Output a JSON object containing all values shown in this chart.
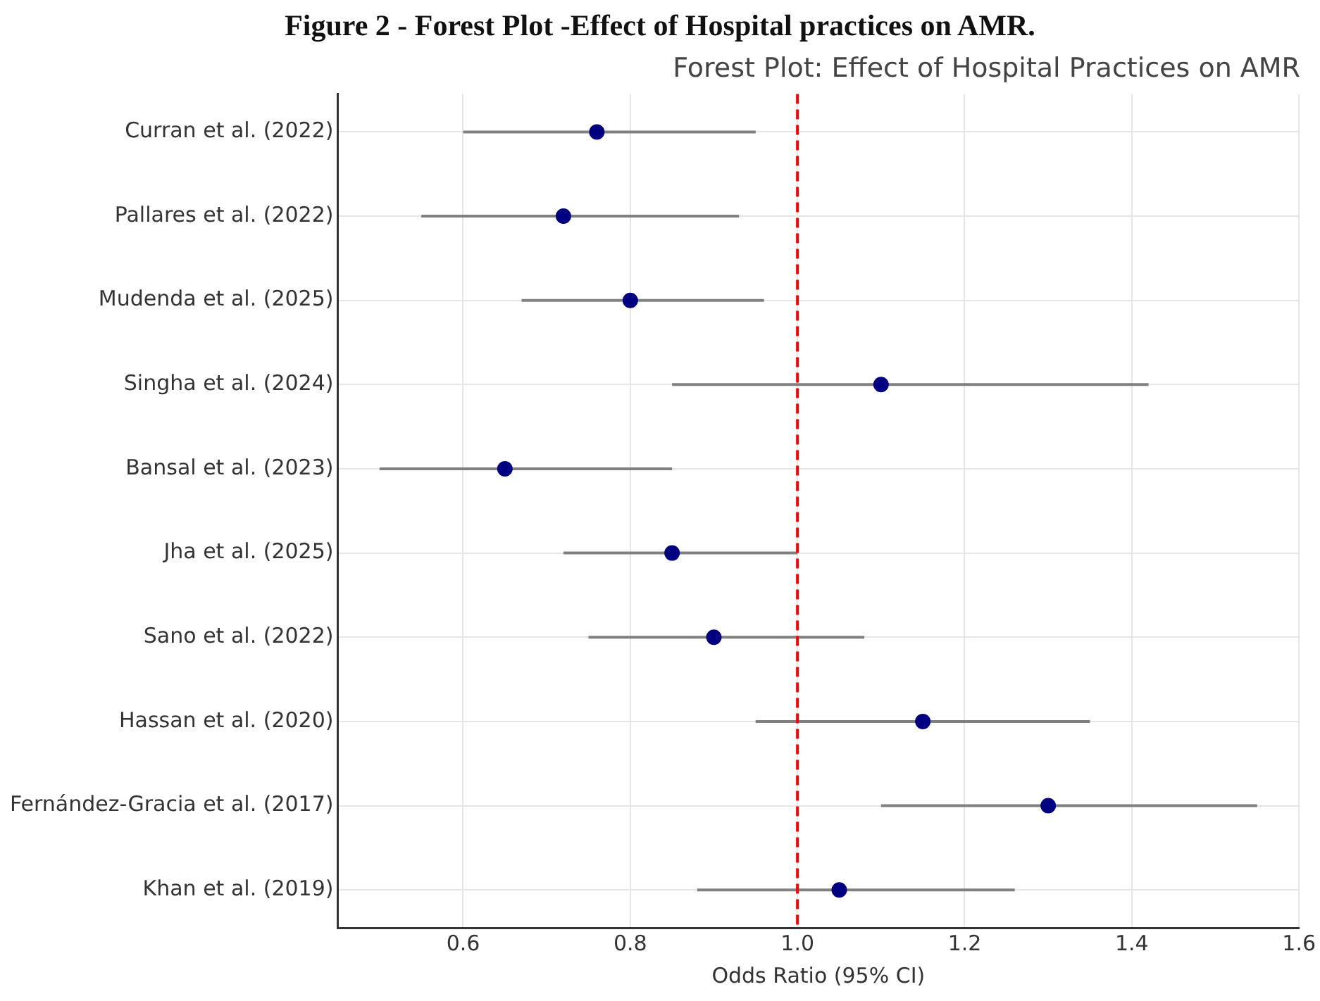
{
  "chart_data": {
    "type": "scatter",
    "orientation": "horizontal",
    "title": "Forest Plot: Effect of Hospital Practices on AMR",
    "xlabel": "Odds Ratio (95% CI)",
    "annotations": [
      "Figure 2 -  Forest Plot -Effect of Hospital practices on AMR."
    ],
    "categories": [
      "Curran et al. (2022)",
      "Pallares et al. (2022)",
      "Mudenda et al. (2025)",
      "Singha et al. (2024)",
      "Bansal et al. (2023)",
      "Jha et al. (2025)",
      "Sano et al. (2022)",
      "Hassan et al. (2020)",
      "Fernández-Gracia et al. (2017)",
      "Khan et al. (2019)"
    ],
    "values": [
      0.76,
      0.72,
      0.8,
      1.1,
      0.65,
      0.85,
      0.9,
      1.15,
      1.3,
      1.05
    ],
    "errors": [
      [
        0.6,
        0.95
      ],
      [
        0.55,
        0.93
      ],
      [
        0.67,
        0.96
      ],
      [
        0.85,
        1.42
      ],
      [
        0.5,
        0.85
      ],
      [
        0.72,
        1.0
      ],
      [
        0.75,
        1.08
      ],
      [
        0.95,
        1.35
      ],
      [
        1.1,
        1.55
      ],
      [
        0.88,
        1.26
      ]
    ],
    "color": "#000080",
    "marker": "circle",
    "xlim": [
      0.45,
      1.6
    ],
    "xticks": [
      0.6,
      0.8,
      {
        "value": 1,
        "label": "1.0"
      },
      1.2,
      1.4,
      1.6
    ],
    "ref_lines": [
      {
        "axis": "x",
        "value": 1,
        "color": "#ff0000",
        "line_style": "dashed"
      }
    ],
    "grid": true
  }
}
